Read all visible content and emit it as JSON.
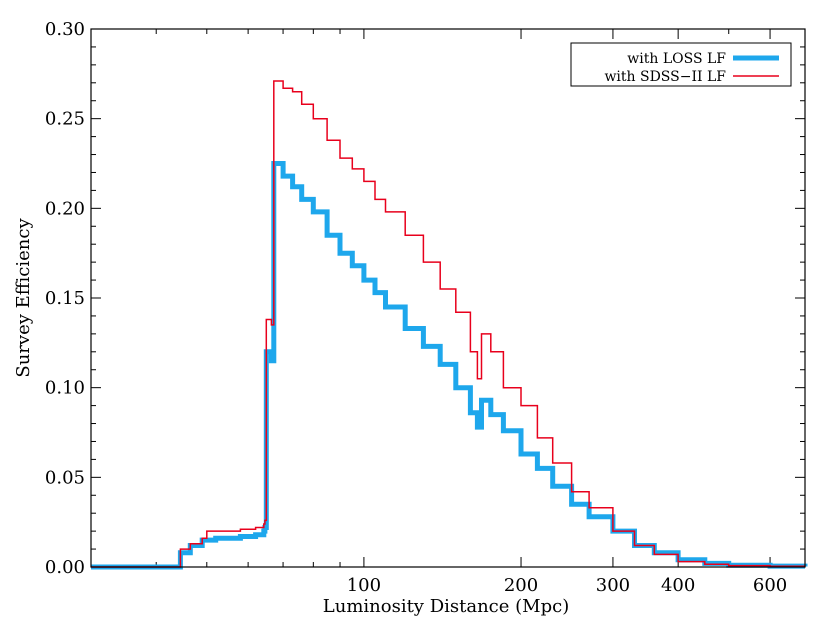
{
  "chart_data": {
    "type": "line",
    "xlabel": "Luminosity Distance (Mpc)",
    "ylabel": "Survey Efficiency",
    "x_scale": "log",
    "xlim": [
      30,
      700
    ],
    "ylim": [
      0,
      0.3
    ],
    "xticks": [
      100,
      200,
      300,
      400,
      600
    ],
    "xtick_labels": [
      "100",
      "200",
      "300",
      "400",
      "600"
    ],
    "yticks": [
      0,
      0.05,
      0.1,
      0.15,
      0.2,
      0.25,
      0.3
    ],
    "ytick_labels": [
      "0.00",
      "0.05",
      "0.10",
      "0.15",
      "0.20",
      "0.25",
      "0.30"
    ],
    "grid": false,
    "legend_position": "top-right",
    "series": [
      {
        "name": "with LOSS LF",
        "color": "#1ea7ec",
        "style": "thick-step",
        "points": [
          [
            30,
            0.0
          ],
          [
            44,
            0.0
          ],
          [
            44.5,
            0.008
          ],
          [
            46.5,
            0.012
          ],
          [
            49,
            0.015
          ],
          [
            52,
            0.016
          ],
          [
            55,
            0.016
          ],
          [
            58,
            0.017
          ],
          [
            62,
            0.018
          ],
          [
            64.3,
            0.02
          ],
          [
            64.6,
            0.022
          ],
          [
            65,
            0.12
          ],
          [
            66.5,
            0.115
          ],
          [
            67.2,
            0.225
          ],
          [
            70,
            0.218
          ],
          [
            73,
            0.212
          ],
          [
            76,
            0.205
          ],
          [
            80,
            0.198
          ],
          [
            85,
            0.185
          ],
          [
            90,
            0.175
          ],
          [
            95,
            0.168
          ],
          [
            100,
            0.16
          ],
          [
            105,
            0.153
          ],
          [
            110,
            0.145
          ],
          [
            120,
            0.133
          ],
          [
            130,
            0.123
          ],
          [
            140,
            0.113
          ],
          [
            150,
            0.1
          ],
          [
            160,
            0.086
          ],
          [
            165,
            0.078
          ],
          [
            168,
            0.093
          ],
          [
            175,
            0.085
          ],
          [
            185,
            0.076
          ],
          [
            200,
            0.063
          ],
          [
            215,
            0.055
          ],
          [
            230,
            0.045
          ],
          [
            250,
            0.035
          ],
          [
            270,
            0.028
          ],
          [
            300,
            0.02
          ],
          [
            330,
            0.012
          ],
          [
            360,
            0.008
          ],
          [
            400,
            0.004
          ],
          [
            450,
            0.002
          ],
          [
            500,
            0.001
          ],
          [
            600,
            0.0005
          ],
          [
            700,
            0.0003
          ]
        ]
      },
      {
        "name": "with SDSS−II LF",
        "color": "#e8001c",
        "style": "thin-step",
        "points": [
          [
            30,
            0.0
          ],
          [
            44,
            0.0
          ],
          [
            44.5,
            0.01
          ],
          [
            46.5,
            0.013
          ],
          [
            49,
            0.016
          ],
          [
            50,
            0.02
          ],
          [
            52,
            0.02
          ],
          [
            55,
            0.02
          ],
          [
            58,
            0.021
          ],
          [
            62,
            0.022
          ],
          [
            64.3,
            0.024
          ],
          [
            64.6,
            0.026
          ],
          [
            65,
            0.138
          ],
          [
            66.5,
            0.135
          ],
          [
            67.2,
            0.271
          ],
          [
            70,
            0.267
          ],
          [
            73,
            0.265
          ],
          [
            76,
            0.258
          ],
          [
            80,
            0.25
          ],
          [
            85,
            0.238
          ],
          [
            90,
            0.228
          ],
          [
            95,
            0.222
          ],
          [
            100,
            0.215
          ],
          [
            105,
            0.205
          ],
          [
            110,
            0.198
          ],
          [
            120,
            0.185
          ],
          [
            130,
            0.17
          ],
          [
            140,
            0.155
          ],
          [
            150,
            0.142
          ],
          [
            160,
            0.12
          ],
          [
            165,
            0.105
          ],
          [
            168,
            0.13
          ],
          [
            175,
            0.12
          ],
          [
            185,
            0.1
          ],
          [
            200,
            0.09
          ],
          [
            215,
            0.072
          ],
          [
            230,
            0.058
          ],
          [
            250,
            0.042
          ],
          [
            270,
            0.033
          ],
          [
            300,
            0.02
          ],
          [
            330,
            0.012
          ],
          [
            360,
            0.007
          ],
          [
            400,
            0.003
          ],
          [
            450,
            0.0015
          ],
          [
            500,
            0.0008
          ],
          [
            600,
            0.0004
          ],
          [
            700,
            0.0002
          ]
        ]
      }
    ]
  }
}
